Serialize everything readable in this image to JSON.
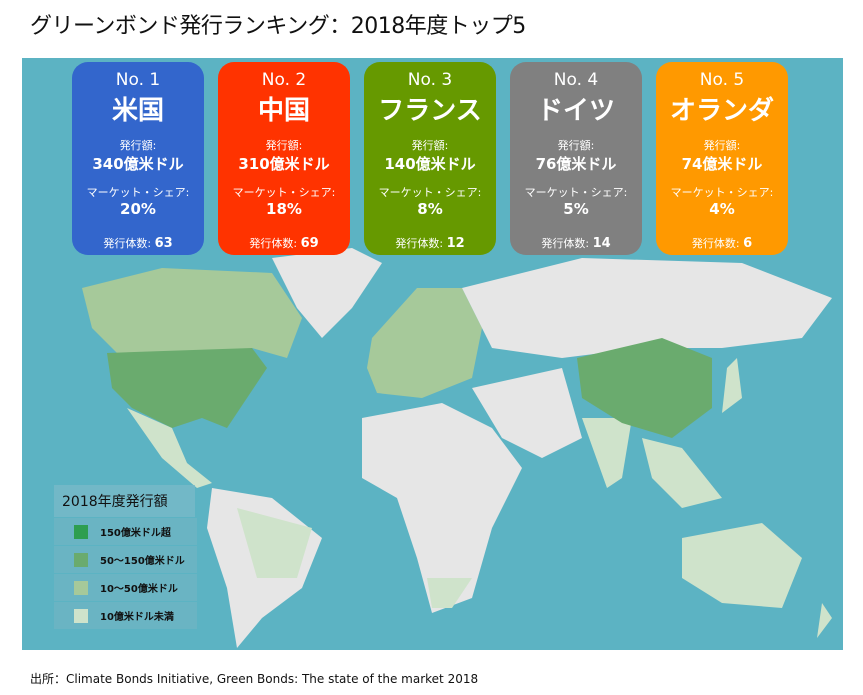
{
  "title": "グリーンボンド発行ランキング：2018年度トップ5",
  "cards": [
    {
      "rank": "No. 1",
      "country": "米国",
      "amount_label": "発行額:",
      "amount": "340億米ドル",
      "share_label": "マーケット・シェア:",
      "share": "20%",
      "count_label": "発行体数:",
      "count": "63",
      "color": "#3366cc"
    },
    {
      "rank": "No. 2",
      "country": "中国",
      "amount_label": "発行額:",
      "amount": "310億米ドル",
      "share_label": "マーケット・シェア:",
      "share": "18%",
      "count_label": "発行体数:",
      "count": "69",
      "color": "#ff3300"
    },
    {
      "rank": "No. 3",
      "country": "フランス",
      "amount_label": "発行額:",
      "amount": "140億米ドル",
      "share_label": "マーケット・シェア:",
      "share": "8%",
      "count_label": "発行体数:",
      "count": "12",
      "color": "#669900"
    },
    {
      "rank": "No. 4",
      "country": "ドイツ",
      "amount_label": "発行額:",
      "amount": "76億米ドル",
      "share_label": "マーケット・シェア:",
      "share": "5%",
      "count_label": "発行体数:",
      "count": "14",
      "color": "#808080"
    },
    {
      "rank": "No. 5",
      "country": "オランダ",
      "amount_label": "発行額:",
      "amount": "74億米ドル",
      "share_label": "マーケット・シェア:",
      "share": "4%",
      "count_label": "発行体数:",
      "count": "6",
      "color": "#ff9900"
    }
  ],
  "legend": {
    "title": "2018年度発行額",
    "items": [
      {
        "label": "150億米ドル超",
        "color": "#2e9e50"
      },
      {
        "label": "50～150億米ドル",
        "color": "#6aab6e"
      },
      {
        "label": "10～50億米ドル",
        "color": "#a6c99a"
      },
      {
        "label": "10億米ドル未満",
        "color": "#cfe3cb"
      }
    ]
  },
  "colors": {
    "ocean": "#5cb3c3",
    "land": "#e6e6e6"
  },
  "source": "出所：Climate Bonds Initiative, Green Bonds: The state of the market 2018"
}
